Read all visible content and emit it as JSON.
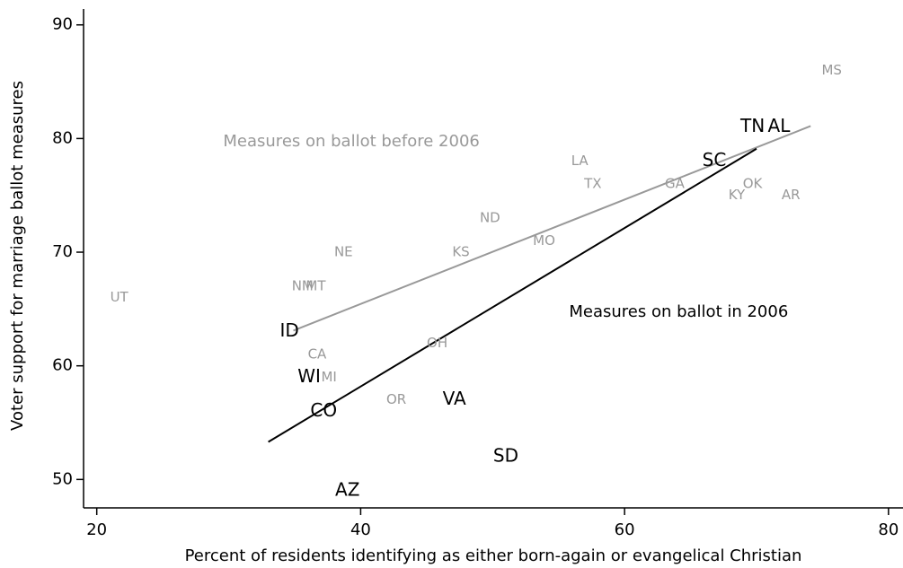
{
  "chart_data": {
    "type": "scatter",
    "xlabel": "Percent of residents identifying as either born-again or evangelical Christian",
    "ylabel": "Voter support for marriage ballot measures",
    "xlim": [
      19,
      81.1
    ],
    "ylim": [
      47.5,
      91.4
    ],
    "xticks": [
      20,
      40,
      60,
      80
    ],
    "yticks": [
      50,
      60,
      70,
      80,
      90
    ],
    "grid": false,
    "series": [
      {
        "color": "#999999",
        "labels": [
          "UT",
          "NE",
          "NM",
          "MT",
          "CA",
          "MI",
          "OR",
          "OH",
          "KS",
          "ND",
          "MO",
          "LA",
          "TX",
          "GA",
          "KY",
          "OK",
          "AR",
          "MS"
        ],
        "x": [
          21.7,
          38.7,
          35.6,
          36.6,
          36.7,
          37.6,
          42.7,
          45.8,
          47.6,
          49.8,
          53.9,
          56.6,
          57.6,
          63.8,
          68.5,
          69.7,
          72.6,
          75.7
        ],
        "values": [
          66,
          70,
          67,
          67,
          61,
          59,
          57,
          62,
          70,
          73,
          71,
          78,
          76,
          76,
          75,
          76,
          75,
          86
        ]
      },
      {
        "color": "#000000",
        "labels": [
          "ID",
          "WI",
          "CO",
          "AZ",
          "VA",
          "SD",
          "SC",
          "TN",
          "AL"
        ],
        "x": [
          34.6,
          36.1,
          37.2,
          39.0,
          47.1,
          51.0,
          66.8,
          69.7,
          71.7
        ],
        "values": [
          63,
          59,
          56,
          49,
          57,
          52,
          78,
          81,
          81
        ]
      }
    ],
    "fit_lines": [
      {
        "color": "#999999",
        "x": [
          34.9,
          74.1
        ],
        "values": [
          63.1,
          81.1
        ]
      },
      {
        "color": "#000000",
        "x": [
          33.0,
          70.0
        ],
        "values": [
          53.3,
          79.1
        ]
      }
    ],
    "annotations": [
      {
        "text": "Measures on ballot before 2006",
        "x": 39.3,
        "y": 79.7,
        "color": "#999999"
      },
      {
        "text": "Measures on ballot in 2006",
        "x": 64.1,
        "y": 64.7,
        "color": "#000000"
      }
    ]
  }
}
